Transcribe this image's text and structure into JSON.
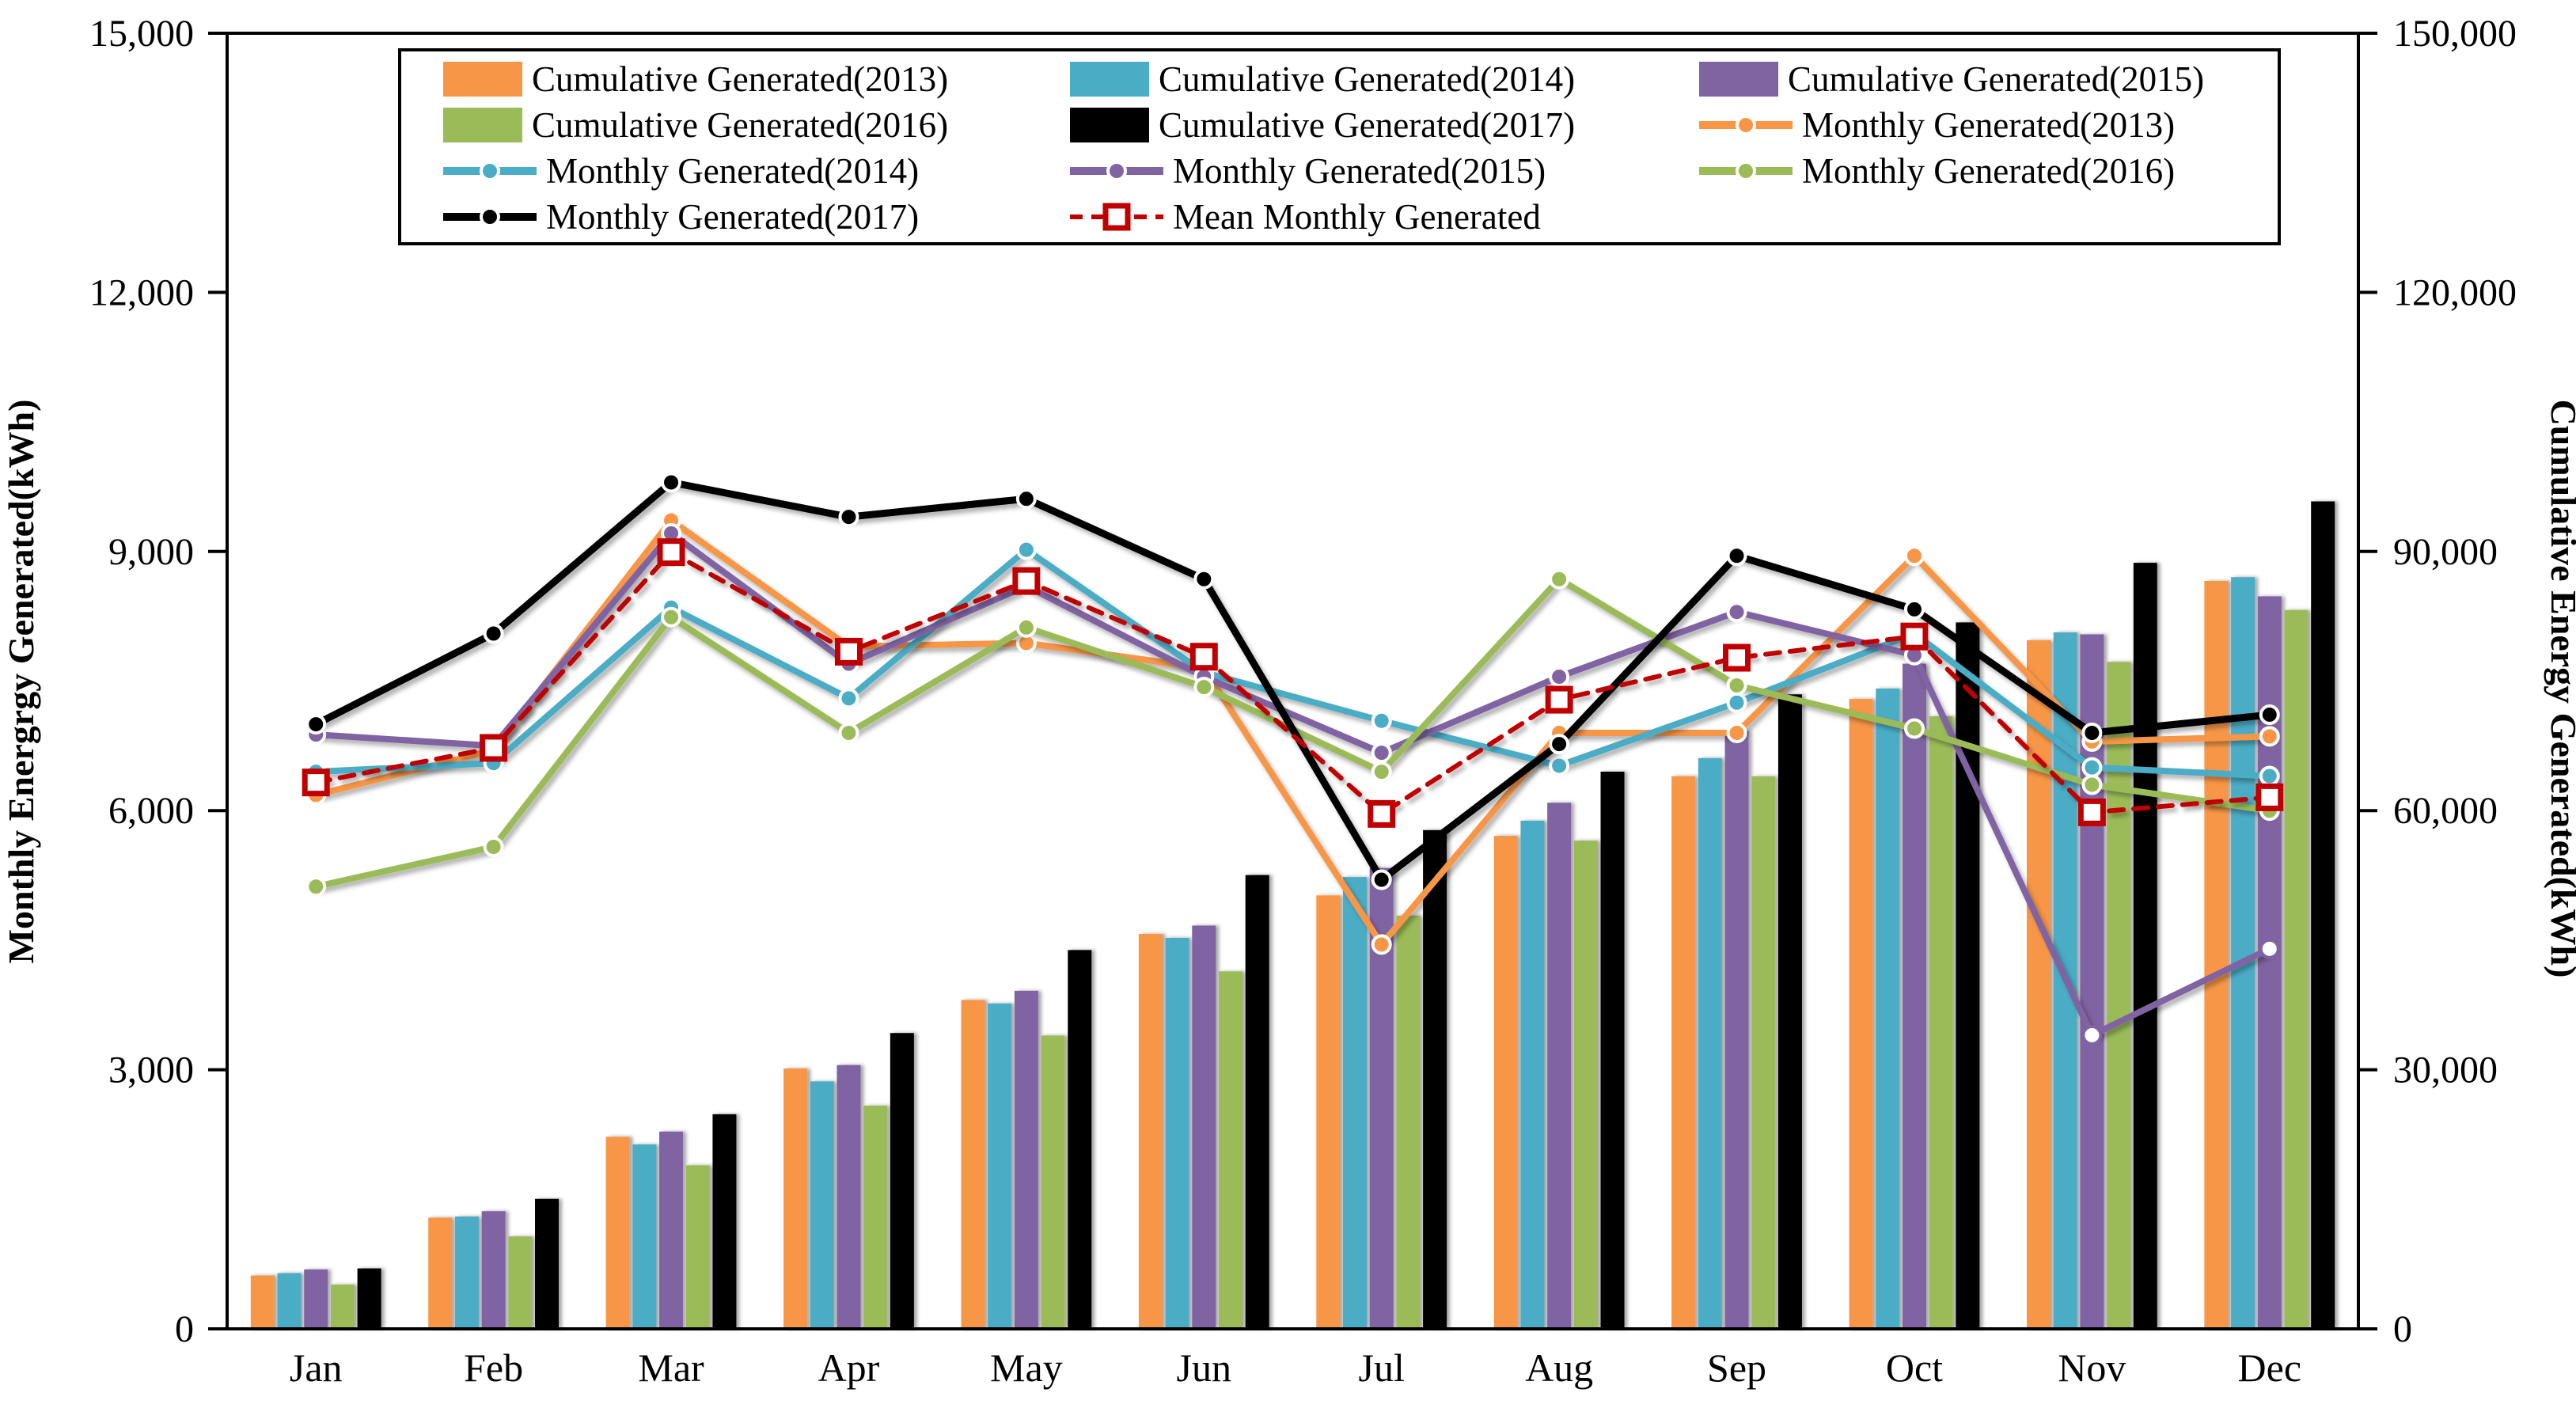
{
  "chart_data": {
    "type": "combo-bar-line",
    "title": "",
    "grid": "off",
    "categories": [
      "Jan",
      "Feb",
      "Mar",
      "Apr",
      "May",
      "Jun",
      "Jul",
      "Aug",
      "Sep",
      "Oct",
      "Nov",
      "Dec"
    ],
    "left_axis": {
      "title": "Monthly Energrgy Generated(kWh)",
      "min": 0,
      "max": 15000,
      "tick_step": 3000,
      "tick_labels": [
        "0",
        "3,000",
        "6,000",
        "9,000",
        "12,000",
        "15,000"
      ]
    },
    "right_axis": {
      "title": "Cumulative Energy Generated(kWh)",
      "min": 0,
      "max": 150000,
      "tick_step": 30000,
      "tick_labels": [
        "0",
        "30,000",
        "60,000",
        "90,000",
        "120,000",
        "150,000"
      ]
    },
    "bar_series": [
      {
        "name": "Cumulative Generated(2013)",
        "color": "#F79646",
        "axis": "right",
        "values": [
          6180,
          12880,
          22240,
          30140,
          38080,
          45730,
          50180,
          57080,
          63980,
          72930,
          79730,
          86590
        ]
      },
      {
        "name": "Cumulative Generated(2014)",
        "color": "#4BACC6",
        "axis": "right",
        "values": [
          6450,
          13000,
          21350,
          28650,
          37670,
          45270,
          52310,
          58830,
          66080,
          74130,
          80630,
          87030
        ]
      },
      {
        "name": "Cumulative Generated(2015)",
        "color": "#8064A2",
        "axis": "right",
        "values": [
          6880,
          13630,
          22840,
          30540,
          39140,
          46690,
          53360,
          60910,
          69210,
          77010,
          80410,
          84810
        ]
      },
      {
        "name": "Cumulative Generated(2016)",
        "color": "#9BBB59",
        "axis": "right",
        "values": [
          5120,
          10700,
          18940,
          25840,
          33960,
          41390,
          47840,
          56520,
          63970,
          70920,
          77220,
          83220
        ]
      },
      {
        "name": "Cumulative Generated(2017)",
        "color": "#000000",
        "axis": "right",
        "values": [
          7000,
          15050,
          24850,
          34250,
          43860,
          52540,
          57740,
          64510,
          73460,
          81790,
          88690,
          95800
        ]
      }
    ],
    "line_series": [
      {
        "name": "Monthly Generated(2013)",
        "color": "#F79646",
        "axis": "left",
        "dashed": false,
        "marker": "circle",
        "values": [
          6180,
          6700,
          9360,
          7900,
          7940,
          7650,
          4450,
          6900,
          6900,
          8950,
          6800,
          6860
        ]
      },
      {
        "name": "Monthly Generated(2014)",
        "color": "#4BACC6",
        "axis": "left",
        "dashed": false,
        "marker": "circle",
        "values": [
          6450,
          6550,
          8350,
          7300,
          9020,
          7600,
          7040,
          6520,
          7250,
          8050,
          6500,
          6400
        ]
      },
      {
        "name": "Monthly Generated(2015)",
        "color": "#8064A2",
        "axis": "left",
        "dashed": false,
        "marker": "circle",
        "open_marker_indices": [
          10,
          11
        ],
        "values": [
          6880,
          6750,
          9210,
          7700,
          8600,
          7550,
          6670,
          7550,
          8300,
          7800,
          3400,
          4400
        ]
      },
      {
        "name": "Monthly Generated(2016)",
        "color": "#9BBB59",
        "axis": "left",
        "dashed": false,
        "marker": "circle",
        "values": [
          5120,
          5580,
          8240,
          6900,
          8120,
          7430,
          6450,
          8680,
          7450,
          6950,
          6300,
          6000
        ]
      },
      {
        "name": "Monthly Generated(2017)",
        "color": "#000000",
        "axis": "left",
        "dashed": false,
        "marker": "circle",
        "values": [
          7000,
          8050,
          9800,
          9400,
          9610,
          8680,
          5200,
          6770,
          8950,
          8330,
          6900,
          7110
        ]
      },
      {
        "name": "Mean Monthly Generated",
        "color": "#C00000",
        "axis": "left",
        "dashed": true,
        "marker": "square",
        "values": [
          6326,
          6726,
          8992,
          7840,
          8658,
          7782,
          5962,
          7284,
          7770,
          8016,
          5980,
          6154
        ]
      }
    ],
    "legend": {
      "position": "top",
      "columns": 3,
      "entries_order": [
        "Cumulative Generated(2013)",
        "Cumulative Generated(2014)",
        "Cumulative Generated(2015)",
        "Cumulative Generated(2016)",
        "Cumulative Generated(2017)",
        "Monthly Generated(2013)",
        "Monthly Generated(2014)",
        "Monthly Generated(2015)",
        "Monthly Generated(2016)",
        "Monthly Generated(2017)",
        "Mean Monthly Generated"
      ]
    },
    "colors": {
      "orange_2013": "#F79646",
      "teal_2014": "#4BACC6",
      "purple_2015": "#8064A2",
      "green_2016": "#9BBB59",
      "black_2017": "#000000",
      "mean_red": "#C00000",
      "axis_black": "#000000",
      "background": "#FFFFFF"
    }
  }
}
